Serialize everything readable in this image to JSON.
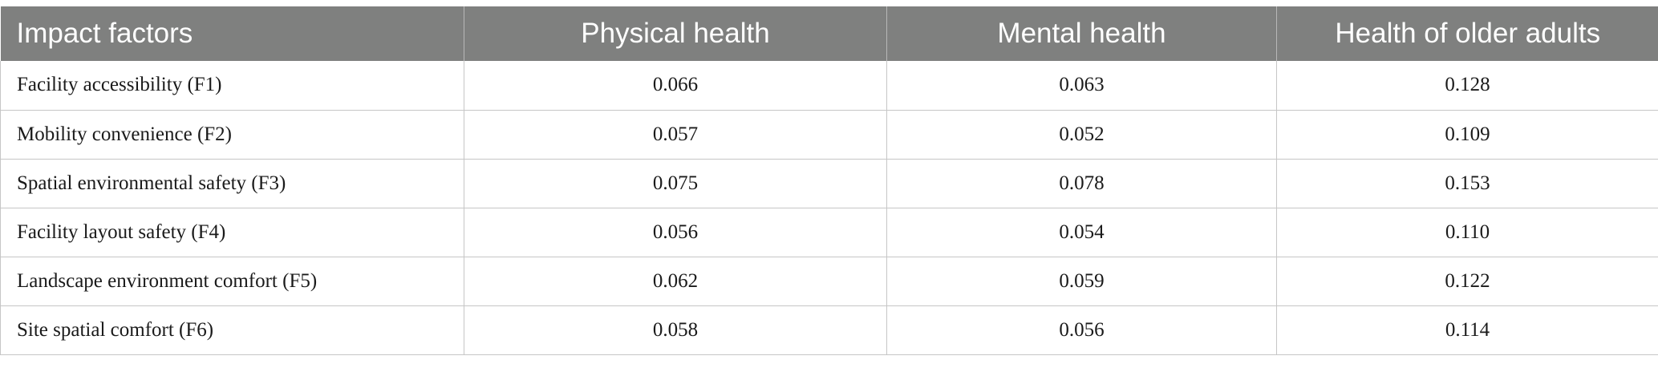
{
  "table": {
    "headers": [
      "Impact factors",
      "Physical health",
      "Mental health",
      "Health of older adults"
    ],
    "rows": [
      [
        "Facility accessibility (F1)",
        "0.066",
        "0.063",
        "0.128"
      ],
      [
        "Mobility convenience (F2)",
        "0.057",
        "0.052",
        "0.109"
      ],
      [
        "Spatial environmental safety (F3)",
        "0.075",
        "0.078",
        "0.153"
      ],
      [
        "Facility layout safety (F4)",
        "0.056",
        "0.054",
        "0.110"
      ],
      [
        "Landscape environment comfort (F5)",
        "0.062",
        "0.059",
        "0.122"
      ],
      [
        "Site spatial comfort (F6)",
        "0.058",
        "0.056",
        "0.114"
      ]
    ],
    "colors": {
      "header_bg": "#7f807f",
      "header_text": "#ffffff",
      "border": "#c6c6c6"
    }
  }
}
